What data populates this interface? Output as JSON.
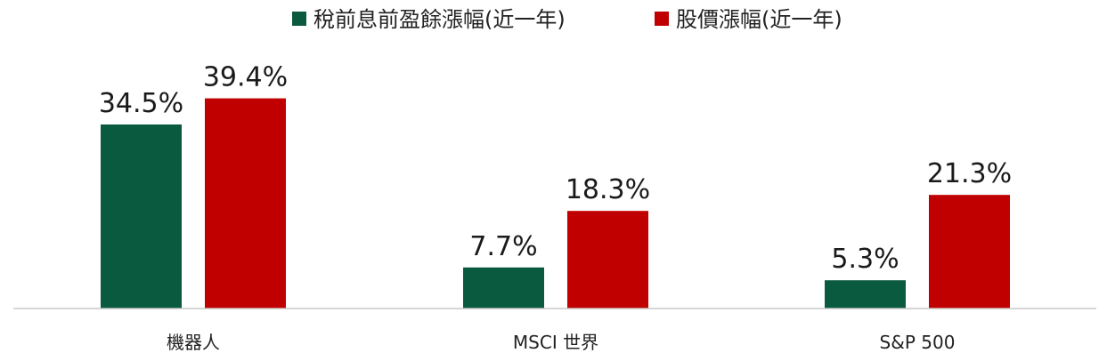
{
  "chart_data": {
    "type": "bar",
    "categories": [
      "機器人",
      "MSCI 世界",
      "S&P 500"
    ],
    "series": [
      {
        "name": "稅前息前盈餘漲幅(近一年)",
        "values": [
          34.5,
          7.7,
          5.3
        ],
        "labels": [
          "34.5%",
          "7.7%",
          "5.3%"
        ],
        "color": "#0a5a40"
      },
      {
        "name": "股價漲幅(近一年)",
        "values": [
          39.4,
          18.3,
          21.3
        ],
        "labels": [
          "39.4%",
          "18.3%",
          "21.3%"
        ],
        "color": "#c00000"
      }
    ],
    "unit": "%",
    "legend_position": "top-center",
    "grid": false,
    "baseline_color": "#c8c8c8"
  }
}
